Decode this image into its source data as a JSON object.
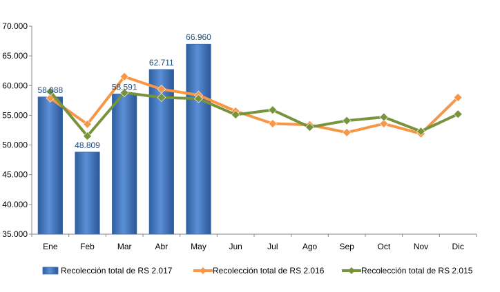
{
  "chart_data": {
    "type": "bar",
    "categories": [
      "Ene",
      "Feb",
      "Mar",
      "Abr",
      "May",
      "Jun",
      "Jul",
      "Ago",
      "Sep",
      "Oct",
      "Nov",
      "Dic"
    ],
    "y_tick_labels": [
      "35.000",
      "40.000",
      "45.000",
      "50.000",
      "55.000",
      "60.000",
      "65.000",
      "70.000"
    ],
    "ylim": [
      35000,
      70000
    ],
    "grid": false,
    "legend_position": "bottom",
    "series": [
      {
        "name": "Recolección total de RS 2.017",
        "kind": "bar",
        "color": "#4F81BD",
        "values": [
          58088,
          48809,
          58591,
          62711,
          66960,
          null,
          null,
          null,
          null,
          null,
          null,
          null
        ],
        "data_labels": [
          "58.088",
          "48.809",
          "58.591",
          "62.711",
          "66.960",
          "",
          "",
          "",
          "",
          "",
          "",
          ""
        ]
      },
      {
        "name": "Recolección total de RS 2.016",
        "kind": "line",
        "color": "#F79646",
        "values": [
          57900,
          53500,
          61500,
          59400,
          58400,
          55700,
          53600,
          53400,
          52100,
          53600,
          51900,
          58000
        ]
      },
      {
        "name": "Recolección total de RS 2.015",
        "kind": "line",
        "color": "#77933C",
        "values": [
          59000,
          51500,
          58800,
          58000,
          57800,
          55100,
          55900,
          53000,
          54100,
          54700,
          52300,
          55200
        ]
      }
    ]
  }
}
